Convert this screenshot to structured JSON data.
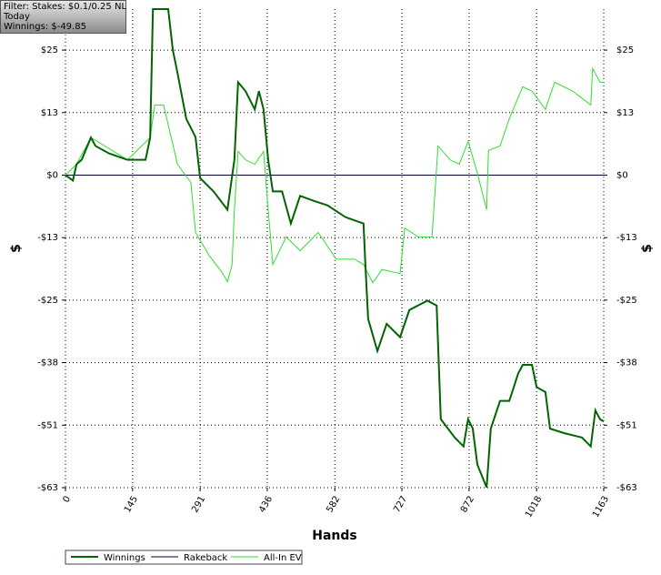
{
  "chart_data": {
    "type": "line",
    "annotations": [
      "Filter: Stakes: $0.1/0.25 NL",
      "Today",
      "Winnings: $-49.85"
    ],
    "xlabel": "Hands",
    "ylabel": "$",
    "xlim": [
      0,
      1163
    ],
    "xticks": [
      0,
      145,
      291,
      436,
      582,
      727,
      872,
      1018,
      1163
    ],
    "ylim": [
      -63.25,
      33.6
    ],
    "yticks": [
      {
        "value": 25.3,
        "label": "$25"
      },
      {
        "value": 12.65,
        "label": "$13"
      },
      {
        "value": 0,
        "label": "$0"
      },
      {
        "value": -12.65,
        "label": "-$13"
      },
      {
        "value": -25.3,
        "label": "-$25"
      },
      {
        "value": -37.95,
        "label": "-$38"
      },
      {
        "value": -50.6,
        "label": "-$51"
      },
      {
        "value": -63.25,
        "label": "-$63"
      }
    ],
    "grid": true,
    "series": [
      {
        "name": "Winnings",
        "color": "#006400",
        "x": [
          0,
          16,
          24,
          35,
          55,
          65,
          94,
          134,
          173,
          183,
          189,
          222,
          232,
          242,
          261,
          281,
          291,
          320,
          350,
          365,
          373,
          389,
          409,
          418,
          428,
          438,
          448,
          468,
          487,
          507,
          536,
          566,
          605,
          644,
          648,
          654,
          674,
          694,
          723,
          743,
          782,
          802,
          811,
          841,
          860,
          870,
          880,
          890,
          910,
          919,
          939,
          959,
          978,
          988,
          1008,
          1018,
          1037,
          1047,
          1077,
          1116,
          1135,
          1145,
          1155,
          1163
        ],
        "values": [
          0,
          -1.1,
          2.2,
          3.1,
          7.6,
          5.9,
          4.4,
          3.1,
          3.1,
          7.6,
          33.6,
          33.6,
          25.3,
          20.7,
          11.4,
          7.7,
          -0.6,
          -3.3,
          -7.0,
          3.1,
          18.8,
          17.0,
          13.3,
          17.0,
          13.3,
          3.1,
          -3.3,
          -3.3,
          -9.8,
          -4.2,
          -5.2,
          -6.1,
          -8.5,
          -9.8,
          -18.1,
          -29.1,
          -35.6,
          -30.1,
          -32.8,
          -27.3,
          -25.4,
          -26.4,
          -49.4,
          -53.1,
          -54.9,
          -49.4,
          -51.3,
          -58.6,
          -63.2,
          -51.3,
          -45.7,
          -45.7,
          -40.2,
          -38.4,
          -38.4,
          -42.9,
          -43.9,
          -51.3,
          -52.2,
          -53.1,
          -54.9,
          -47.6,
          -49.4,
          -49.85
        ]
      },
      {
        "name": "Rakeback",
        "color": "#000033",
        "x": [
          0,
          1163
        ],
        "values": [
          0,
          0
        ]
      },
      {
        "name": "All-In EV",
        "color": "#33dd33",
        "x": [
          0,
          24,
          55,
          134,
          183,
          193,
          212,
          242,
          271,
          281,
          310,
          340,
          350,
          360,
          365,
          373,
          389,
          409,
          428,
          438,
          448,
          477,
          507,
          546,
          585,
          625,
          644,
          664,
          684,
          723,
          733,
          762,
          792,
          805,
          831,
          851,
          870,
          890,
          910,
          914,
          939,
          959,
          988,
          1008,
          1037,
          1057,
          1096,
          1135,
          1139,
          1155,
          1163
        ],
        "values": [
          0,
          2.2,
          7.6,
          3.1,
          7.6,
          14.2,
          14.2,
          2.2,
          -1.5,
          -11.6,
          -16.2,
          -19.9,
          -21.6,
          -18.1,
          -7.0,
          4.8,
          3.1,
          2.2,
          4.8,
          -7.0,
          -18.1,
          -12.5,
          -15.3,
          -11.6,
          -17.0,
          -17.0,
          -18.1,
          -21.8,
          -19.1,
          -19.9,
          -10.7,
          -12.5,
          -12.5,
          5.9,
          3.1,
          2.2,
          6.8,
          0.4,
          -7.0,
          5.0,
          5.9,
          11.4,
          17.9,
          17.0,
          13.3,
          18.8,
          17.0,
          14.2,
          21.6,
          18.8,
          18.8
        ]
      }
    ]
  }
}
